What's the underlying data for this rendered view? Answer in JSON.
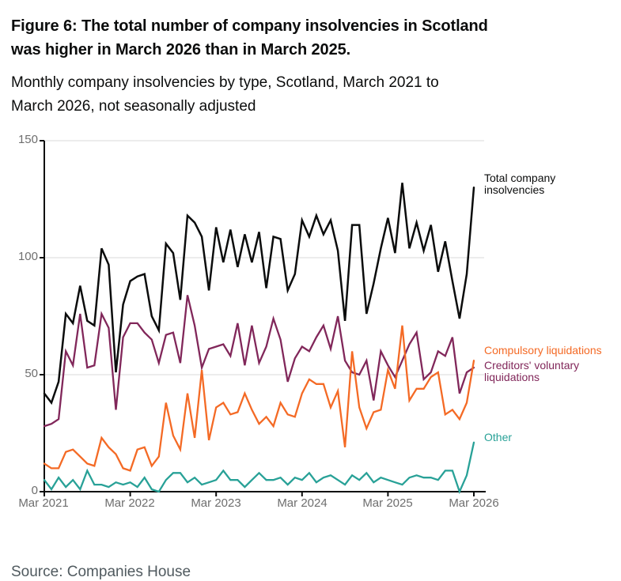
{
  "header": {
    "title_lines": [
      "Figure 6: The total number of company insolvencies in Scotland",
      "was higher in March 2026 than in March 2025."
    ],
    "subtitle_lines": [
      "Monthly company insolvencies by type, Scotland, March 2021 to",
      "March 2026, not seasonally adjusted"
    ]
  },
  "source": "Source: Companies House",
  "chart_data": {
    "type": "line",
    "title": "Figure 6: The total number of company insolvencies in Scotland was higher in March 2026 than in March 2025.",
    "subtitle": "Monthly company insolvencies by type, Scotland, March 2021 to March 2026, not seasonally adjusted",
    "x_unit": "month",
    "x_start": "March 2021",
    "x_end": "March 2026",
    "n_points": 61,
    "x_tick_labels": [
      "Mar 2021",
      "Mar 2022",
      "Mar 2023",
      "Mar 2024",
      "Mar 2025",
      "Mar 2026"
    ],
    "x_tick_month_indices": [
      0,
      12,
      24,
      36,
      48,
      60
    ],
    "ylim": [
      0,
      150
    ],
    "y_ticks": [
      0,
      50,
      100,
      150
    ],
    "grid": "horizontal",
    "grid_color": "#d9d9d9",
    "axis_color": "#0b0c0c",
    "tick_label_color": "#6e6e6e",
    "legend_position": "right-of-line-labels",
    "series": [
      {
        "name": "Total company insolvencies",
        "label_lines": [
          "Total company",
          "insolvencies"
        ],
        "color": "#0b0c0c",
        "values": [
          42,
          38,
          47,
          76,
          72,
          88,
          73,
          71,
          104,
          97,
          51,
          80,
          90,
          92,
          93,
          75,
          69,
          106,
          102,
          82,
          118,
          115,
          109,
          86,
          113,
          98,
          112,
          96,
          110,
          98,
          111,
          87,
          109,
          108,
          86,
          93,
          116,
          109,
          118,
          110,
          116,
          103,
          73,
          114,
          114,
          76,
          89,
          104,
          117,
          102,
          132,
          104,
          115,
          103,
          114,
          94,
          107,
          90,
          74,
          93,
          130
        ]
      },
      {
        "name": "Compulsory liquidations",
        "label_lines": [
          "Compulsory liquidations"
        ],
        "color": "#f46a25",
        "values": [
          12,
          10,
          10,
          17,
          18,
          15,
          12,
          11,
          23,
          19,
          16,
          10,
          9,
          18,
          19,
          11,
          15,
          38,
          24,
          18,
          42,
          23,
          52,
          22,
          36,
          38,
          33,
          34,
          42,
          35,
          29,
          32,
          28,
          38,
          33,
          32,
          42,
          48,
          46,
          46,
          36,
          43,
          19,
          60,
          36,
          27,
          34,
          35,
          52,
          44,
          71,
          39,
          44,
          44,
          49,
          51,
          33,
          35,
          31,
          38,
          56
        ]
      },
      {
        "name": "Creditors' voluntary liquidations",
        "label_lines": [
          "Creditors' voluntary",
          "liquidations"
        ],
        "color": "#81275a",
        "values": [
          28,
          29,
          31,
          60,
          54,
          76,
          53,
          54,
          76,
          70,
          35,
          66,
          72,
          72,
          68,
          65,
          55,
          67,
          68,
          55,
          84,
          71,
          53,
          61,
          62,
          63,
          58,
          72,
          54,
          71,
          55,
          62,
          74,
          65,
          47,
          57,
          62,
          60,
          66,
          71,
          61,
          75,
          56,
          51,
          50,
          56,
          39,
          60,
          54,
          49,
          56,
          63,
          68,
          48,
          51,
          60,
          58,
          66,
          42,
          51,
          53
        ]
      },
      {
        "name": "Other",
        "label_lines": [
          "Other"
        ],
        "color": "#28a197",
        "values": [
          5,
          1,
          6,
          2,
          5,
          1,
          9,
          3,
          3,
          2,
          4,
          3,
          4,
          2,
          6,
          1,
          0,
          5,
          8,
          8,
          4,
          6,
          3,
          4,
          5,
          9,
          5,
          5,
          2,
          5,
          8,
          5,
          5,
          6,
          3,
          6,
          5,
          8,
          4,
          6,
          7,
          5,
          3,
          7,
          5,
          8,
          4,
          6,
          5,
          4,
          3,
          6,
          7,
          6,
          6,
          5,
          9,
          9,
          0,
          7,
          21
        ]
      }
    ]
  }
}
